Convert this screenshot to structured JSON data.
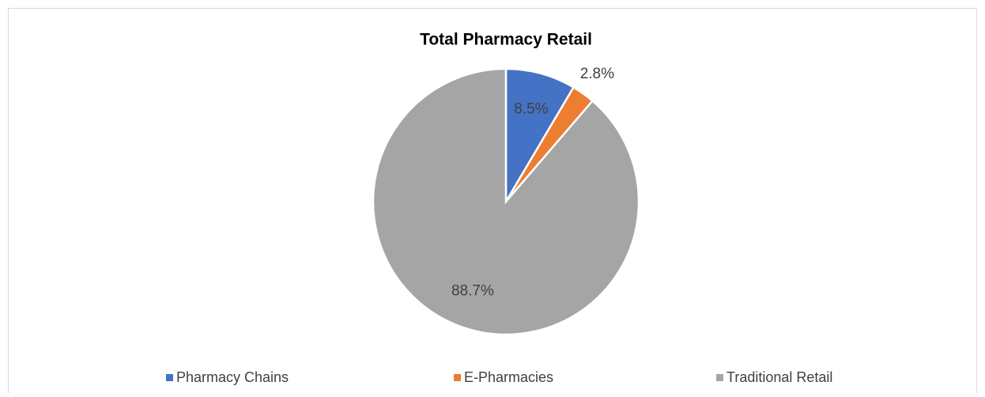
{
  "chart_data": {
    "type": "pie",
    "title": "Total Pharmacy Retail",
    "categories": [
      "Pharmacy Chains",
      "E-Pharmacies",
      "Traditional Retail"
    ],
    "values": [
      8.5,
      2.8,
      88.7
    ],
    "value_labels": [
      "8.5%",
      "2.8%",
      "88.7%"
    ],
    "colors": [
      "#4472c4",
      "#ed7d31",
      "#a5a5a5"
    ],
    "legend": "bottom"
  }
}
